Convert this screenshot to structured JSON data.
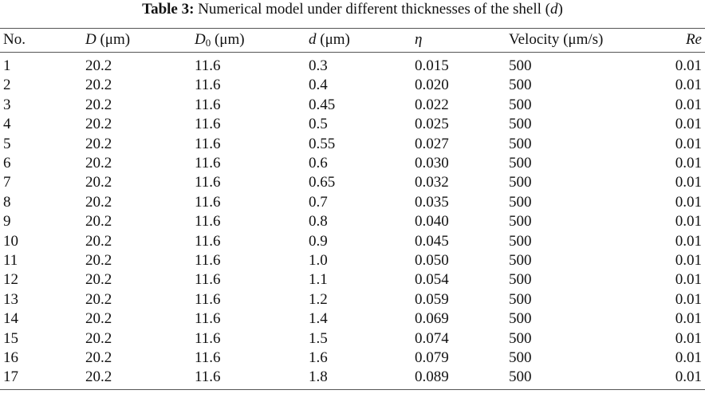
{
  "caption": {
    "runs": [
      {
        "text": "Table 3:",
        "bold": true
      },
      {
        "text": " Numerical model under different thicknesses of the shell ("
      },
      {
        "text": "d",
        "italic": true
      },
      {
        "text": ")"
      }
    ]
  },
  "table": {
    "header": [
      [
        {
          "text": "No."
        }
      ],
      [
        {
          "text": "D",
          "italic": true
        },
        {
          "text": " (μm)"
        }
      ],
      [
        {
          "text": "D",
          "italic": true
        },
        {
          "text": "0",
          "sub": true
        },
        {
          "text": " (μm)"
        }
      ],
      [
        {
          "text": "d",
          "italic": true
        },
        {
          "text": " (μm)"
        }
      ],
      [
        {
          "text": "η",
          "italic": true
        }
      ],
      [
        {
          "text": "Velocity (μm/s)"
        }
      ],
      [
        {
          "text": "Re",
          "italic": true
        }
      ]
    ],
    "rows": [
      [
        "1",
        "20.2",
        "11.6",
        "0.3",
        "0.015",
        "500",
        "0.01"
      ],
      [
        "2",
        "20.2",
        "11.6",
        "0.4",
        "0.020",
        "500",
        "0.01"
      ],
      [
        "3",
        "20.2",
        "11.6",
        "0.45",
        "0.022",
        "500",
        "0.01"
      ],
      [
        "4",
        "20.2",
        "11.6",
        "0.5",
        "0.025",
        "500",
        "0.01"
      ],
      [
        "5",
        "20.2",
        "11.6",
        "0.55",
        "0.027",
        "500",
        "0.01"
      ],
      [
        "6",
        "20.2",
        "11.6",
        "0.6",
        "0.030",
        "500",
        "0.01"
      ],
      [
        "7",
        "20.2",
        "11.6",
        "0.65",
        "0.032",
        "500",
        "0.01"
      ],
      [
        "8",
        "20.2",
        "11.6",
        "0.7",
        "0.035",
        "500",
        "0.01"
      ],
      [
        "9",
        "20.2",
        "11.6",
        "0.8",
        "0.040",
        "500",
        "0.01"
      ],
      [
        "10",
        "20.2",
        "11.6",
        "0.9",
        "0.045",
        "500",
        "0.01"
      ],
      [
        "11",
        "20.2",
        "11.6",
        "1.0",
        "0.050",
        "500",
        "0.01"
      ],
      [
        "12",
        "20.2",
        "11.6",
        "1.1",
        "0.054",
        "500",
        "0.01"
      ],
      [
        "13",
        "20.2",
        "11.6",
        "1.2",
        "0.059",
        "500",
        "0.01"
      ],
      [
        "14",
        "20.2",
        "11.6",
        "1.4",
        "0.069",
        "500",
        "0.01"
      ],
      [
        "15",
        "20.2",
        "11.6",
        "1.5",
        "0.074",
        "500",
        "0.01"
      ],
      [
        "16",
        "20.2",
        "11.6",
        "1.6",
        "0.079",
        "500",
        "0.01"
      ],
      [
        "17",
        "20.2",
        "11.6",
        "1.8",
        "0.089",
        "500",
        "0.01"
      ]
    ]
  }
}
